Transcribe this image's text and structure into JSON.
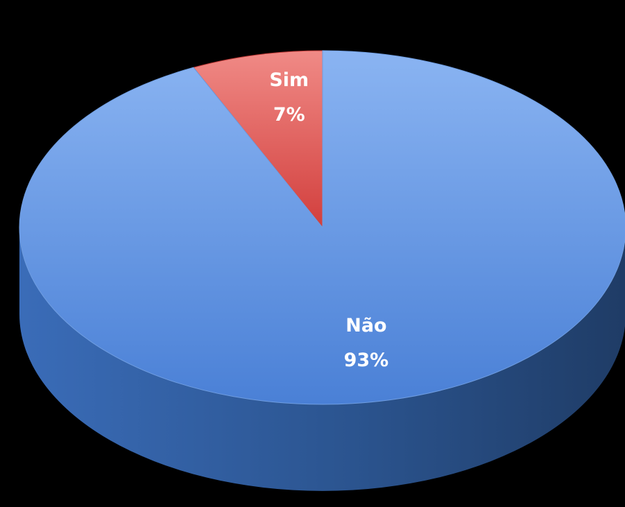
{
  "chart_data": {
    "type": "pie",
    "style": "3d",
    "start_angle_deg": -90,
    "direction": "counterclockwise",
    "legend": "none",
    "slices": [
      {
        "label": "Sim",
        "value": 7,
        "value_label": "7%",
        "color": "#e35d5a"
      },
      {
        "label": "Não",
        "value": 93,
        "value_label": "93%",
        "color": "#5b8fdc"
      }
    ]
  }
}
